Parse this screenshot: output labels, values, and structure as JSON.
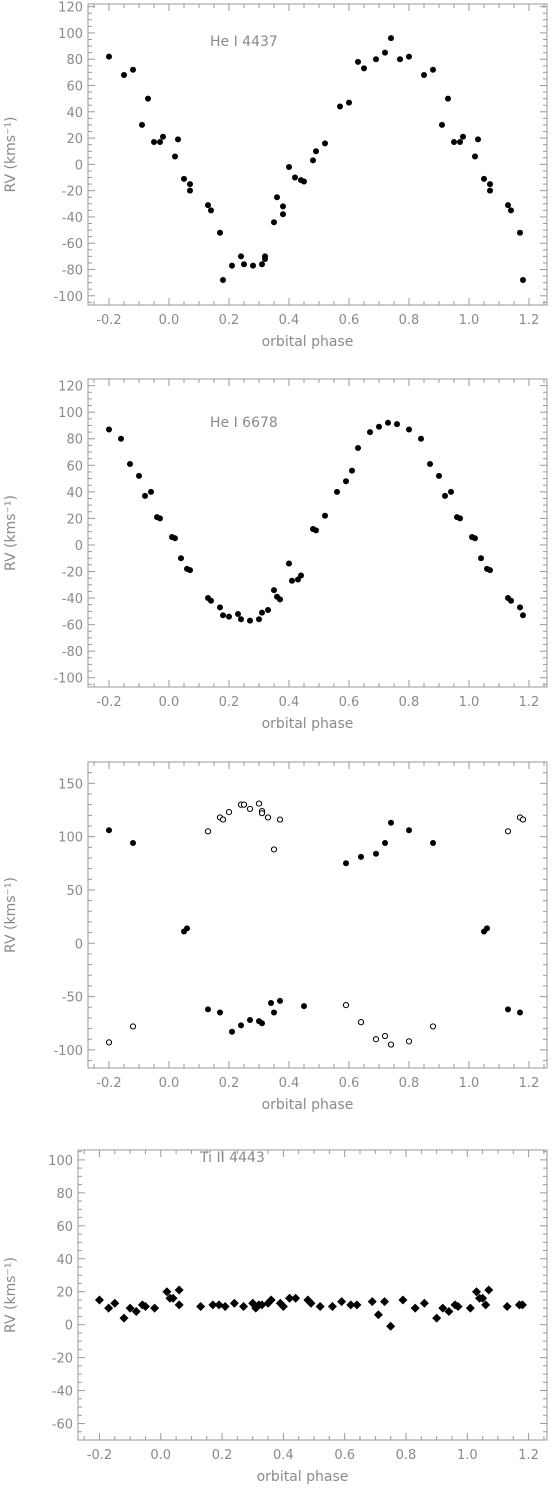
{
  "chart_data": [
    {
      "type": "scatter",
      "ylabel": "RV (kms⁻¹)",
      "xlabel": "orbital phase",
      "annotation": "He I 4437",
      "xlim": [
        -0.27,
        1.26
      ],
      "ylim": [
        -107,
        122
      ],
      "xticks": [
        -0.2,
        0.0,
        0.2,
        0.4,
        0.6,
        0.8,
        1.0,
        1.2
      ],
      "xticklabels": [
        "-0.2",
        "0.0",
        "0.2",
        "0.4",
        "0.6",
        "0.8",
        "1.0",
        "1.2"
      ],
      "yticks": [
        -100,
        -80,
        -60,
        -40,
        -20,
        0,
        20,
        40,
        60,
        80,
        100,
        120
      ],
      "yticklabels": [
        "-100",
        "-80",
        "-60",
        "-40",
        "-20",
        "0",
        "20",
        "40",
        "60",
        "80",
        "100",
        "120"
      ],
      "grid": false,
      "series": [
        {
          "marker": "filled-circle",
          "points": [
            [
              -0.2,
              82
            ],
            [
              -0.15,
              68
            ],
            [
              -0.12,
              72
            ],
            [
              -0.09,
              30
            ],
            [
              -0.07,
              50
            ],
            [
              -0.05,
              17
            ],
            [
              -0.03,
              17
            ],
            [
              -0.02,
              21
            ],
            [
              0.02,
              6
            ],
            [
              0.03,
              19
            ],
            [
              0.05,
              -11
            ],
            [
              0.07,
              -15
            ],
            [
              0.07,
              -20
            ],
            [
              0.13,
              -31
            ],
            [
              0.14,
              -35
            ],
            [
              0.17,
              -52
            ],
            [
              0.18,
              -88
            ],
            [
              0.21,
              -77
            ],
            [
              0.24,
              -70
            ],
            [
              0.25,
              -76
            ],
            [
              0.28,
              -77
            ],
            [
              0.31,
              -76
            ],
            [
              0.32,
              -72
            ],
            [
              0.32,
              -70
            ],
            [
              0.35,
              -44
            ],
            [
              0.36,
              -25
            ],
            [
              0.38,
              -32
            ],
            [
              0.38,
              -38
            ],
            [
              0.4,
              -2
            ],
            [
              0.42,
              -10
            ],
            [
              0.44,
              -12
            ],
            [
              0.45,
              -13
            ],
            [
              0.48,
              3
            ],
            [
              0.49,
              10
            ],
            [
              0.52,
              16
            ],
            [
              0.57,
              44
            ],
            [
              0.6,
              47
            ],
            [
              0.63,
              78
            ],
            [
              0.65,
              73
            ],
            [
              0.69,
              80
            ],
            [
              0.72,
              85
            ],
            [
              0.74,
              96
            ],
            [
              0.77,
              80
            ],
            [
              0.8,
              82
            ],
            [
              0.85,
              68
            ],
            [
              0.88,
              72
            ],
            [
              0.91,
              30
            ],
            [
              0.93,
              50
            ],
            [
              0.95,
              17
            ],
            [
              0.97,
              17
            ],
            [
              0.98,
              21
            ],
            [
              1.02,
              6
            ],
            [
              1.03,
              19
            ],
            [
              1.05,
              -11
            ],
            [
              1.07,
              -15
            ],
            [
              1.07,
              -20
            ],
            [
              1.13,
              -31
            ],
            [
              1.14,
              -35
            ],
            [
              1.17,
              -52
            ],
            [
              1.18,
              -88
            ]
          ]
        }
      ]
    },
    {
      "type": "scatter",
      "ylabel": "RV (kms⁻¹)",
      "xlabel": "orbital phase",
      "annotation": "He I 6678",
      "xlim": [
        -0.27,
        1.26
      ],
      "ylim": [
        -107,
        125
      ],
      "xticks": [
        -0.2,
        0.0,
        0.2,
        0.4,
        0.6,
        0.8,
        1.0,
        1.2
      ],
      "xticklabels": [
        "-0.2",
        "0.0",
        "0.2",
        "0.4",
        "0.6",
        "0.8",
        "1.0",
        "1.2"
      ],
      "yticks": [
        -100,
        -80,
        -60,
        -40,
        -20,
        0,
        20,
        40,
        60,
        80,
        100,
        120
      ],
      "yticklabels": [
        "-100",
        "-80",
        "-60",
        "-40",
        "-20",
        "0",
        "20",
        "40",
        "60",
        "80",
        "100",
        "120"
      ],
      "grid": false,
      "series": [
        {
          "marker": "filled-circle",
          "points": [
            [
              -0.2,
              87
            ],
            [
              -0.16,
              80
            ],
            [
              -0.13,
              61
            ],
            [
              -0.1,
              52
            ],
            [
              -0.08,
              37
            ],
            [
              -0.06,
              40
            ],
            [
              -0.04,
              21
            ],
            [
              -0.03,
              20
            ],
            [
              0.01,
              6
            ],
            [
              0.02,
              5
            ],
            [
              0.04,
              -10
            ],
            [
              0.06,
              -18
            ],
            [
              0.07,
              -19
            ],
            [
              0.13,
              -40
            ],
            [
              0.14,
              -42
            ],
            [
              0.17,
              -47
            ],
            [
              0.18,
              -53
            ],
            [
              0.2,
              -54
            ],
            [
              0.23,
              -52
            ],
            [
              0.24,
              -56
            ],
            [
              0.27,
              -57
            ],
            [
              0.3,
              -56
            ],
            [
              0.31,
              -51
            ],
            [
              0.33,
              -49
            ],
            [
              0.35,
              -34
            ],
            [
              0.36,
              -39
            ],
            [
              0.37,
              -41
            ],
            [
              0.4,
              -14
            ],
            [
              0.41,
              -27
            ],
            [
              0.43,
              -26
            ],
            [
              0.44,
              -23
            ],
            [
              0.48,
              12
            ],
            [
              0.49,
              11
            ],
            [
              0.52,
              22
            ],
            [
              0.56,
              40
            ],
            [
              0.59,
              48
            ],
            [
              0.61,
              56
            ],
            [
              0.63,
              73
            ],
            [
              0.67,
              85
            ],
            [
              0.7,
              89
            ],
            [
              0.73,
              92
            ],
            [
              0.76,
              91
            ],
            [
              0.8,
              87
            ],
            [
              0.84,
              80
            ],
            [
              0.87,
              61
            ],
            [
              0.9,
              52
            ],
            [
              0.92,
              37
            ],
            [
              0.94,
              40
            ],
            [
              0.96,
              21
            ],
            [
              0.97,
              20
            ],
            [
              1.01,
              6
            ],
            [
              1.02,
              5
            ],
            [
              1.04,
              -10
            ],
            [
              1.06,
              -18
            ],
            [
              1.07,
              -19
            ],
            [
              1.13,
              -40
            ],
            [
              1.14,
              -42
            ],
            [
              1.17,
              -47
            ],
            [
              1.18,
              -53
            ]
          ]
        }
      ]
    },
    {
      "type": "scatter",
      "ylabel": "RV (kms⁻¹)",
      "xlabel": "orbital phase",
      "xlim": [
        -0.27,
        1.26
      ],
      "ylim": [
        -117,
        170
      ],
      "xticks": [
        -0.2,
        0.0,
        0.2,
        0.4,
        0.6,
        0.8,
        1.0,
        1.2
      ],
      "xticklabels": [
        "-0.2",
        "0.0",
        "0.2",
        "0.4",
        "0.6",
        "0.8",
        "1.0",
        "1.2"
      ],
      "yticks": [
        -100,
        -50,
        0,
        50,
        100,
        150
      ],
      "yticklabels": [
        "-100",
        "-50",
        "0",
        "50",
        "100",
        "150"
      ],
      "grid": false,
      "series": [
        {
          "marker": "filled-circle",
          "points": [
            [
              -0.2,
              106
            ],
            [
              -0.12,
              94
            ],
            [
              0.05,
              11
            ],
            [
              0.06,
              14
            ],
            [
              0.13,
              -62
            ],
            [
              0.17,
              -65
            ],
            [
              0.21,
              -83
            ],
            [
              0.24,
              -77
            ],
            [
              0.27,
              -72
            ],
            [
              0.3,
              -73
            ],
            [
              0.31,
              -75
            ],
            [
              0.34,
              -56
            ],
            [
              0.35,
              -65
            ],
            [
              0.37,
              -54
            ],
            [
              0.45,
              -59
            ],
            [
              0.59,
              75
            ],
            [
              0.64,
              81
            ],
            [
              0.69,
              84
            ],
            [
              0.72,
              94
            ],
            [
              0.74,
              113
            ],
            [
              0.8,
              106
            ],
            [
              0.88,
              94
            ],
            [
              1.05,
              11
            ],
            [
              1.06,
              14
            ],
            [
              1.13,
              -62
            ],
            [
              1.17,
              -65
            ]
          ]
        },
        {
          "marker": "open-circle",
          "points": [
            [
              -0.2,
              -93
            ],
            [
              -0.12,
              -78
            ],
            [
              0.13,
              105
            ],
            [
              0.17,
              118
            ],
            [
              0.18,
              116
            ],
            [
              0.2,
              123
            ],
            [
              0.24,
              130
            ],
            [
              0.25,
              130
            ],
            [
              0.27,
              126
            ],
            [
              0.3,
              131
            ],
            [
              0.31,
              124
            ],
            [
              0.31,
              122
            ],
            [
              0.33,
              118
            ],
            [
              0.35,
              88
            ],
            [
              0.37,
              116
            ],
            [
              0.59,
              -58
            ],
            [
              0.64,
              -74
            ],
            [
              0.69,
              -90
            ],
            [
              0.72,
              -87
            ],
            [
              0.74,
              -95
            ],
            [
              0.8,
              -92
            ],
            [
              0.88,
              -78
            ],
            [
              1.13,
              105
            ],
            [
              1.17,
              118
            ],
            [
              1.18,
              116
            ]
          ]
        }
      ]
    },
    {
      "type": "scatter",
      "ylabel": "RV (kms⁻¹)",
      "xlabel": "orbital phase",
      "annotation": "Ti II 4443",
      "xlim": [
        -0.27,
        1.26
      ],
      "ylim": [
        -70,
        106
      ],
      "xticks": [
        -0.2,
        0.0,
        0.2,
        0.4,
        0.6,
        0.8,
        1.0,
        1.2
      ],
      "xticklabels": [
        "-0.2",
        "0.0",
        "0.2",
        "0.4",
        "0.6",
        "0.8",
        "1.0",
        "1.2"
      ],
      "yticks": [
        -60,
        -40,
        -20,
        0,
        20,
        40,
        60,
        80,
        100
      ],
      "yticklabels": [
        "-60",
        "-40",
        "-20",
        "0",
        "20",
        "40",
        "60",
        "80",
        "100"
      ],
      "grid": false,
      "series": [
        {
          "marker": "filled-diamond",
          "points": [
            [
              -0.2,
              15
            ],
            [
              -0.17,
              10
            ],
            [
              -0.15,
              13
            ],
            [
              -0.12,
              4
            ],
            [
              -0.1,
              10
            ],
            [
              -0.08,
              8
            ],
            [
              -0.06,
              12
            ],
            [
              -0.05,
              11
            ],
            [
              -0.02,
              10
            ],
            [
              0.02,
              20
            ],
            [
              0.03,
              16
            ],
            [
              0.04,
              16
            ],
            [
              0.06,
              12
            ],
            [
              0.06,
              21
            ],
            [
              0.13,
              11
            ],
            [
              0.17,
              12
            ],
            [
              0.19,
              12
            ],
            [
              0.21,
              11
            ],
            [
              0.24,
              13
            ],
            [
              0.27,
              11
            ],
            [
              0.3,
              13
            ],
            [
              0.31,
              10
            ],
            [
              0.32,
              12
            ],
            [
              0.33,
              12
            ],
            [
              0.35,
              13
            ],
            [
              0.36,
              15
            ],
            [
              0.39,
              13
            ],
            [
              0.4,
              11
            ],
            [
              0.42,
              16
            ],
            [
              0.44,
              16
            ],
            [
              0.48,
              15
            ],
            [
              0.49,
              13
            ],
            [
              0.52,
              11
            ],
            [
              0.56,
              11
            ],
            [
              0.59,
              14
            ],
            [
              0.62,
              12
            ],
            [
              0.64,
              12
            ],
            [
              0.69,
              14
            ],
            [
              0.71,
              6
            ],
            [
              0.73,
              14
            ],
            [
              0.75,
              -1
            ],
            [
              0.79,
              15
            ],
            [
              0.83,
              10
            ],
            [
              0.86,
              13
            ],
            [
              0.9,
              4
            ],
            [
              0.92,
              10
            ],
            [
              0.94,
              8
            ],
            [
              0.96,
              12
            ],
            [
              0.97,
              11
            ],
            [
              1.01,
              10
            ],
            [
              1.03,
              20
            ],
            [
              1.04,
              16
            ],
            [
              1.05,
              16
            ],
            [
              1.06,
              12
            ],
            [
              1.07,
              21
            ],
            [
              1.13,
              11
            ],
            [
              1.17,
              12
            ],
            [
              1.18,
              12
            ]
          ]
        }
      ]
    }
  ]
}
